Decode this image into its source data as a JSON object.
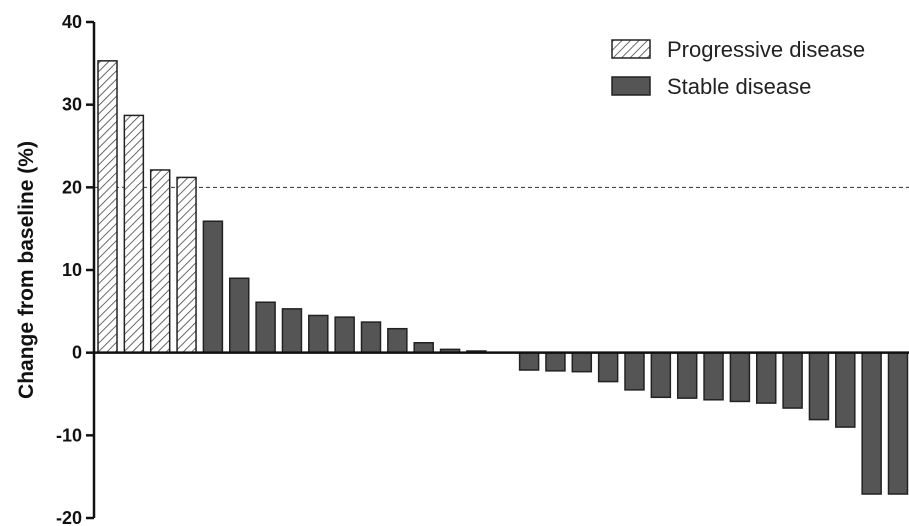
{
  "chart_data": {
    "type": "bar",
    "title": "",
    "xlabel": "",
    "ylabel": "Change from baseline (%)",
    "ylim": [
      -20,
      40
    ],
    "yticks": [
      -20,
      -10,
      0,
      10,
      20,
      30,
      40
    ],
    "threshold": 20,
    "legend_position": "top-right",
    "series": [
      {
        "name": "Progressive disease",
        "pattern": "hatched",
        "color": "#ffffff",
        "values": [
          35.3,
          28.7,
          22.1,
          21.2
        ]
      },
      {
        "name": "Stable disease",
        "pattern": "solid",
        "color": "#555555",
        "values": [
          15.9,
          9.0,
          6.1,
          5.3,
          4.5,
          4.3,
          3.7,
          2.9,
          1.2,
          0.4,
          0.2,
          0,
          -2.1,
          -2.2,
          -2.3,
          -3.5,
          -4.5,
          -5.4,
          -5.5,
          -5.7,
          -5.9,
          -6.1,
          -6.7,
          -8.1,
          -9.0,
          -17.1,
          -17.1
        ]
      }
    ]
  }
}
